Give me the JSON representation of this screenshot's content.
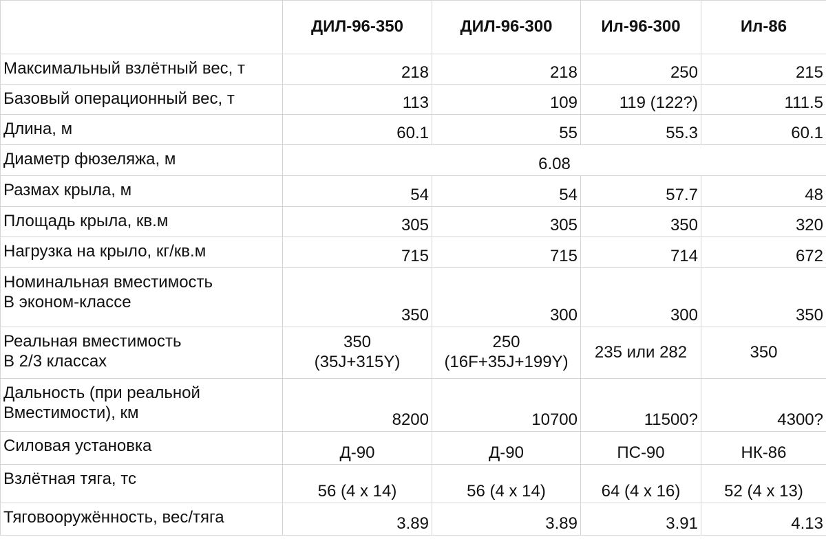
{
  "table": {
    "headers": [
      "ДИЛ-96-350",
      "ДИЛ-96-300",
      "Ил-96-300",
      "Ил-86"
    ],
    "rows": [
      {
        "label": "Максимальный взлётный вес, т",
        "cells": [
          "218",
          "218",
          "250",
          "215"
        ]
      },
      {
        "label": "Базовый операционный вес, т",
        "cells": [
          "113",
          "109",
          "119 (122?)",
          "111.5"
        ]
      },
      {
        "label": "Длина, м",
        "cells": [
          "60.1",
          "55",
          "55.3",
          "60.1"
        ]
      },
      {
        "label": "Диаметр фюзеляжа, м",
        "cells": [
          "6.08"
        ]
      },
      {
        "label": "Размах крыла, м",
        "cells": [
          "54",
          "54",
          "57.7",
          "48"
        ]
      },
      {
        "label": "Площадь крыла, кв.м",
        "cells": [
          "305",
          "305",
          "350",
          "320"
        ]
      },
      {
        "label": "Нагрузка на крыло, кг/кв.м",
        "cells": [
          "715",
          "715",
          "714",
          "672"
        ]
      },
      {
        "label": "Номинальная вместимость\nВ эконом-классе",
        "cells": [
          "350",
          "300",
          "300",
          "350"
        ]
      },
      {
        "label": "Реальная вместимость\nВ 2/3 классах",
        "cells": [
          "350\n(35J+315Y)",
          "250\n(16F+35J+199Y)",
          "235 или 282",
          "350"
        ]
      },
      {
        "label": "Дальность (при реальной\nВместимости), км",
        "cells": [
          "8200",
          "10700",
          "11500?",
          "4300?"
        ]
      },
      {
        "label": "Силовая установка",
        "cells": [
          "Д-90",
          "Д-90",
          "ПС-90",
          "НК-86"
        ]
      },
      {
        "label": "Взлётная тяга, тс",
        "cells": [
          "56 (4  x 14)",
          "56 (4  x 14)",
          "64 (4 x 16)",
          "52 (4 x 13)"
        ]
      },
      {
        "label": "Тяговооружённость, вес/тяга",
        "cells": [
          "3.89",
          "3.89",
          "3.91",
          "4.13"
        ]
      }
    ]
  }
}
